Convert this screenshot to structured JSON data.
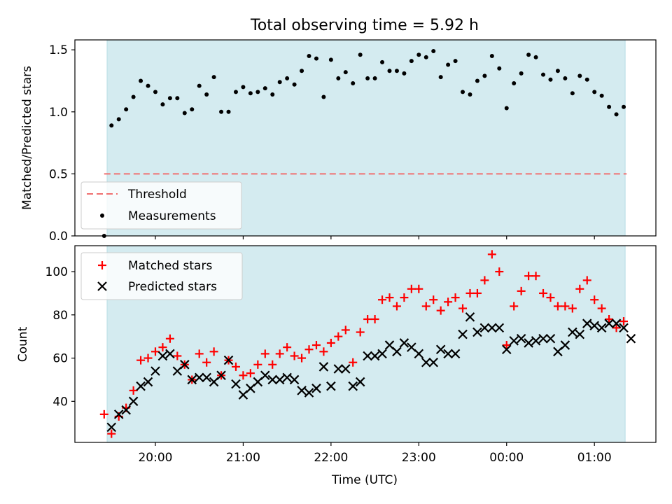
{
  "colors": {
    "shade": "#d4ebf0",
    "threshold": "#f07070",
    "matched": "#ff0000",
    "predicted": "#000000",
    "measurement": "#000000"
  },
  "chart_data": [
    {
      "type": "scatter",
      "title": "Total observing time = 5.92 h",
      "ylabel": "Matched/Predicted stars",
      "xlabel": "",
      "ylim": [
        0,
        1.58
      ],
      "yticks": [
        0.0,
        0.5,
        1.0,
        1.5
      ],
      "ytick_labels": [
        "0.0",
        "0.5",
        "1.0",
        "1.5"
      ],
      "shaded_span": [
        "19:27",
        "01:21"
      ],
      "legend": {
        "placement": "lower-left",
        "entries": [
          "Threshold",
          "Measurements"
        ]
      },
      "threshold": {
        "name": "Threshold",
        "y": 0.5,
        "x_range": [
          "19:25",
          "01:22"
        ]
      },
      "series": [
        {
          "name": "Measurements",
          "marker": "dot",
          "x": [
            "19:25",
            "19:30",
            "19:35",
            "19:40",
            "19:45",
            "19:50",
            "19:55",
            "20:00",
            "20:05",
            "20:10",
            "20:15",
            "20:20",
            "20:25",
            "20:30",
            "20:35",
            "20:40",
            "20:45",
            "20:50",
            "20:55",
            "21:00",
            "21:05",
            "21:10",
            "21:15",
            "21:20",
            "21:25",
            "21:30",
            "21:35",
            "21:40",
            "21:45",
            "21:50",
            "21:55",
            "22:00",
            "22:05",
            "22:10",
            "22:15",
            "22:20",
            "22:25",
            "22:30",
            "22:35",
            "22:40",
            "22:45",
            "22:50",
            "22:55",
            "23:00",
            "23:05",
            "23:10",
            "23:15",
            "23:20",
            "23:25",
            "23:30",
            "23:35",
            "23:40",
            "23:45",
            "23:50",
            "23:55",
            "00:00",
            "00:05",
            "00:10",
            "00:15",
            "00:20",
            "00:25",
            "00:30",
            "00:35",
            "00:40",
            "00:45",
            "00:50",
            "00:55",
            "01:00",
            "01:05",
            "01:10",
            "01:15",
            "01:20"
          ],
          "y": [
            0.0,
            0.89,
            0.94,
            1.02,
            1.12,
            1.25,
            1.21,
            1.16,
            1.06,
            1.11,
            1.11,
            0.99,
            1.02,
            1.21,
            1.14,
            1.28,
            1.0,
            1.0,
            1.16,
            1.2,
            1.15,
            1.16,
            1.19,
            1.14,
            1.24,
            1.27,
            1.22,
            1.33,
            1.45,
            1.43,
            1.12,
            1.42,
            1.27,
            1.32,
            1.23,
            1.46,
            1.27,
            1.27,
            1.4,
            1.33,
            1.33,
            1.31,
            1.41,
            1.46,
            1.44,
            1.49,
            1.28,
            1.38,
            1.41,
            1.16,
            1.14,
            1.25,
            1.29,
            1.45,
            1.35,
            1.03,
            1.23,
            1.31,
            1.46,
            1.44,
            1.3,
            1.26,
            1.33,
            1.27,
            1.15,
            1.29,
            1.26,
            1.16,
            1.13,
            1.04,
            0.98,
            1.04
          ]
        }
      ]
    },
    {
      "type": "scatter",
      "title": "",
      "xlabel": "Time (UTC)",
      "ylabel": "Count",
      "ylim": [
        21,
        112
      ],
      "yticks": [
        40,
        60,
        80,
        100
      ],
      "ytick_labels": [
        "40",
        "60",
        "80",
        "100"
      ],
      "xticks": [
        "20:00",
        "21:00",
        "22:00",
        "23:00",
        "00:00",
        "01:00"
      ],
      "shaded_span": [
        "19:27",
        "01:21"
      ],
      "legend": {
        "placement": "top-left",
        "entries": [
          "Matched stars",
          "Predicted stars"
        ]
      },
      "series": [
        {
          "name": "Matched stars",
          "marker": "plus",
          "x": [
            "19:25",
            "19:30",
            "19:35",
            "19:40",
            "19:45",
            "19:50",
            "19:55",
            "20:00",
            "20:05",
            "20:10",
            "20:15",
            "20:20",
            "20:25",
            "20:30",
            "20:35",
            "20:40",
            "20:45",
            "20:50",
            "20:55",
            "21:00",
            "21:05",
            "21:10",
            "21:15",
            "21:20",
            "21:25",
            "21:30",
            "21:35",
            "21:40",
            "21:45",
            "21:50",
            "21:55",
            "22:00",
            "22:05",
            "22:10",
            "22:15",
            "22:20",
            "22:25",
            "22:30",
            "22:35",
            "22:40",
            "22:45",
            "22:50",
            "22:55",
            "23:00",
            "23:05",
            "23:10",
            "23:15",
            "23:20",
            "23:25",
            "23:30",
            "23:35",
            "23:40",
            "23:45",
            "23:50",
            "23:55",
            "00:00",
            "00:05",
            "00:10",
            "00:15",
            "00:20",
            "00:25",
            "00:30",
            "00:35",
            "00:40",
            "00:45",
            "00:50",
            "00:55",
            "01:00",
            "01:05",
            "01:10",
            "01:15",
            "01:20"
          ],
          "y": [
            34,
            25,
            33,
            37,
            45,
            59,
            60,
            63,
            65,
            69,
            61,
            57,
            50,
            62,
            58,
            63,
            52,
            59,
            56,
            52,
            53,
            57,
            62,
            57,
            62,
            65,
            61,
            60,
            64,
            66,
            63,
            67,
            70,
            73,
            58,
            72,
            78,
            78,
            87,
            88,
            84,
            88,
            92,
            92,
            84,
            87,
            82,
            86,
            88,
            83,
            90,
            90,
            96,
            108,
            100,
            66,
            84,
            91,
            98,
            98,
            90,
            88,
            84,
            84,
            83,
            92,
            96,
            87,
            83,
            78,
            74,
            77
          ]
        },
        {
          "name": "Predicted stars",
          "marker": "x",
          "x": [
            "19:30",
            "19:35",
            "19:40",
            "19:45",
            "19:50",
            "19:55",
            "20:00",
            "20:05",
            "20:10",
            "20:15",
            "20:20",
            "20:25",
            "20:30",
            "20:35",
            "20:40",
            "20:45",
            "20:50",
            "20:55",
            "21:00",
            "21:05",
            "21:10",
            "21:15",
            "21:20",
            "21:25",
            "21:30",
            "21:35",
            "21:40",
            "21:45",
            "21:50",
            "21:55",
            "22:00",
            "22:05",
            "22:10",
            "22:15",
            "22:20",
            "22:25",
            "22:30",
            "22:35",
            "22:40",
            "22:45",
            "22:50",
            "22:55",
            "23:00",
            "23:05",
            "23:10",
            "23:15",
            "23:20",
            "23:25",
            "23:30",
            "23:35",
            "23:40",
            "23:45",
            "23:50",
            "23:55",
            "00:00",
            "00:05",
            "00:10",
            "00:15",
            "00:20",
            "00:25",
            "00:30",
            "00:35",
            "00:40",
            "00:45",
            "00:50",
            "00:55",
            "01:00",
            "01:05",
            "01:10",
            "01:15",
            "01:20",
            "01:25"
          ],
          "y": [
            28,
            34,
            36,
            40,
            47,
            49,
            54,
            61,
            62,
            54,
            57,
            50,
            51,
            51,
            49,
            52,
            59,
            48,
            43,
            46,
            49,
            52,
            50,
            50,
            51,
            50,
            45,
            44,
            46,
            56,
            47,
            55,
            55,
            47,
            49,
            61,
            61,
            62,
            66,
            63,
            67,
            65,
            62,
            58,
            58,
            64,
            62,
            62,
            71,
            79,
            72,
            74,
            74,
            74,
            64,
            68,
            69,
            67,
            68,
            69,
            69,
            63,
            66,
            72,
            71,
            76,
            75,
            74,
            76,
            76,
            74,
            69
          ]
        }
      ]
    }
  ]
}
